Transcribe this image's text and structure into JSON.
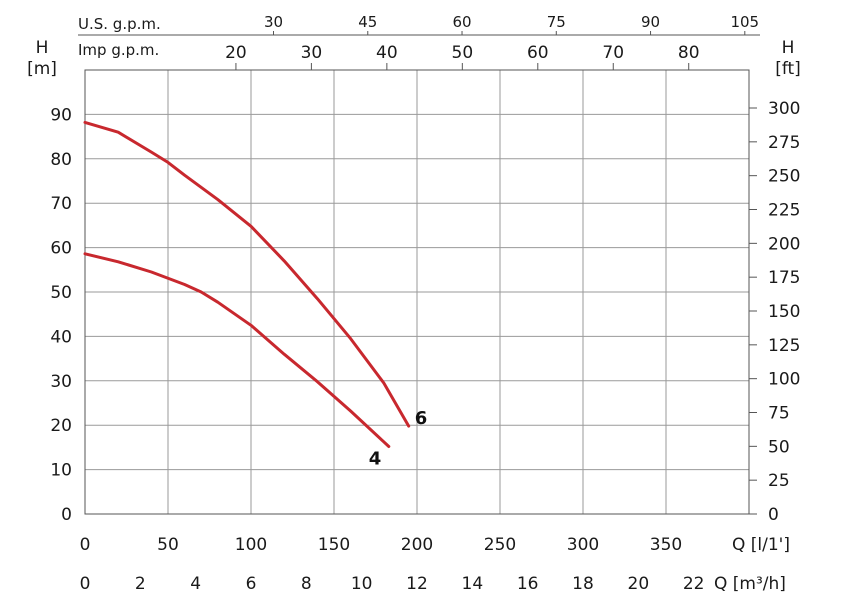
{
  "chart_data": {
    "type": "line",
    "title": "",
    "colors": {
      "curve": "#c8282e",
      "grid": "#9a9a9a",
      "text": "#1a1a1a"
    },
    "grid": true,
    "x_primary": {
      "label": "Q [l/1']",
      "range": [
        0,
        400
      ],
      "ticks": [
        0,
        50,
        100,
        150,
        200,
        250,
        300,
        350
      ]
    },
    "x_secondary_bottom": {
      "label": "Q [m³/h]",
      "ticks": [
        0,
        2,
        4,
        6,
        8,
        10,
        12,
        14,
        16,
        18,
        20,
        22
      ]
    },
    "x_top_us": {
      "label": "U.S. g.p.m.",
      "ticks": [
        30,
        45,
        60,
        75,
        90,
        105
      ]
    },
    "x_top_imp": {
      "label": "Imp g.p.m.",
      "ticks": [
        20,
        30,
        40,
        50,
        60,
        70,
        80
      ]
    },
    "y_left": {
      "label": "H",
      "unit": "[m]",
      "range": [
        0,
        100
      ],
      "ticks": [
        0,
        10,
        20,
        30,
        40,
        50,
        60,
        70,
        80,
        90
      ]
    },
    "y_right": {
      "label": "H",
      "unit": "[ft]",
      "ticks": [
        0,
        25,
        50,
        75,
        100,
        125,
        150,
        175,
        200,
        225,
        250,
        275,
        300
      ]
    },
    "series": [
      {
        "name": "6",
        "x": [
          0,
          20,
          40,
          50,
          60,
          80,
          100,
          120,
          140,
          160,
          180,
          195
        ],
        "y": [
          88.2,
          86,
          81.5,
          79.2,
          76.3,
          70.8,
          64.8,
          57,
          48.5,
          39.5,
          29.5,
          19.8
        ]
      },
      {
        "name": "4",
        "x": [
          0,
          20,
          40,
          60,
          70,
          80,
          100,
          120,
          140,
          160,
          183
        ],
        "y": [
          58.6,
          56.8,
          54.5,
          51.7,
          50,
          47.7,
          42.5,
          36,
          29.8,
          23.2,
          15.2
        ]
      }
    ]
  }
}
